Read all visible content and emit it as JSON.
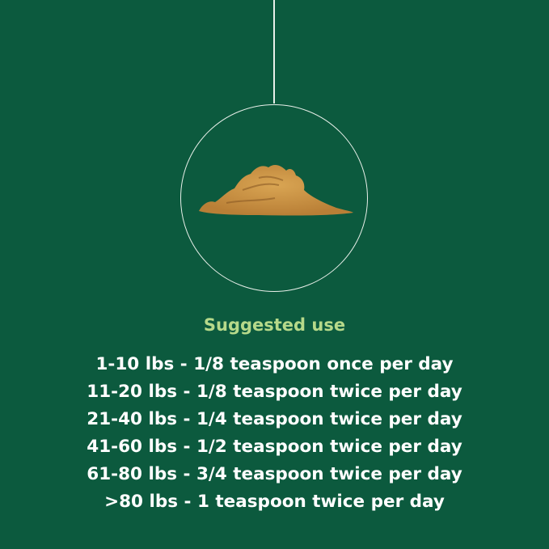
{
  "colors": {
    "background": "#0c5a3e",
    "heading": "#b6d98a",
    "text": "#ffffff",
    "powder": "#d39a4a"
  },
  "illustration": "powder-pile",
  "heading": "Suggested use",
  "dosages": [
    "1-10 lbs - 1/8 teaspoon once per day",
    "11-20 lbs - 1/8 teaspoon twice per day",
    "21-40 lbs - 1/4 teaspoon twice per day",
    "41-60 lbs - 1/2 teaspoon twice per day",
    "61-80 lbs - 3/4 teaspoon twice per day",
    ">80 lbs - 1 teaspoon twice per day"
  ]
}
